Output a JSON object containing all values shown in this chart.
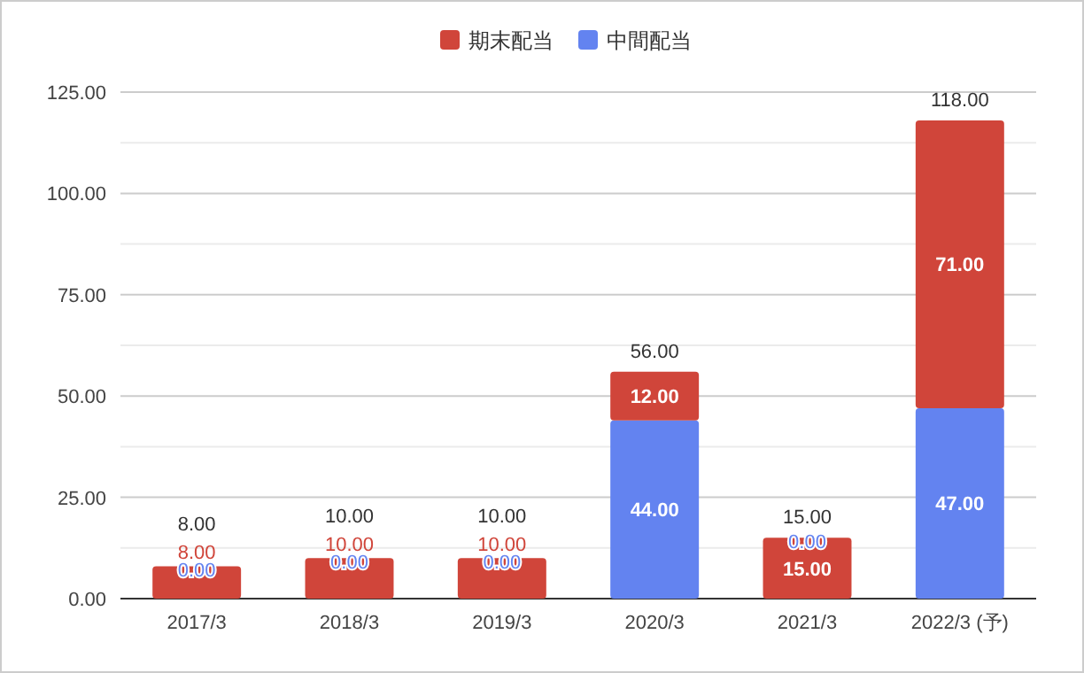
{
  "chart_data": {
    "type": "bar",
    "stacked": true,
    "legend": "top",
    "grid": "y",
    "categories": [
      "2017/3",
      "2018/3",
      "2019/3",
      "2020/3",
      "2021/3",
      "2022/3 (予)"
    ],
    "series": [
      {
        "name": "中間配当",
        "color": "#6383f0",
        "values": [
          0,
          0,
          0,
          44,
          0,
          47
        ],
        "value_labels": [
          "0.00",
          "0.00",
          "0.00",
          "44.00",
          "0.00",
          "47.00"
        ]
      },
      {
        "name": "期末配当",
        "color": "#d0453a",
        "values": [
          8,
          10,
          10,
          12,
          15,
          71
        ],
        "value_labels": [
          "8.00",
          "10.00",
          "10.00",
          "12.00",
          "15.00",
          "71.00"
        ]
      }
    ],
    "totals": [
      "8.00",
      "10.00",
      "10.00",
      "56.00",
      "15.00",
      "118.00"
    ],
    "ylim": [
      0,
      125
    ],
    "yticks": [
      {
        "value": 0,
        "label": "0.00"
      },
      {
        "value": 12.5,
        "label": null
      },
      {
        "value": 25,
        "label": "25.00"
      },
      {
        "value": 37.5,
        "label": null
      },
      {
        "value": 50,
        "label": "50.00"
      },
      {
        "value": 62.5,
        "label": null
      },
      {
        "value": 75,
        "label": "75.00"
      },
      {
        "value": 87.5,
        "label": null
      },
      {
        "value": 100,
        "label": "100.00"
      },
      {
        "value": 112.5,
        "label": null
      },
      {
        "value": 125,
        "label": "125.00"
      }
    ]
  }
}
